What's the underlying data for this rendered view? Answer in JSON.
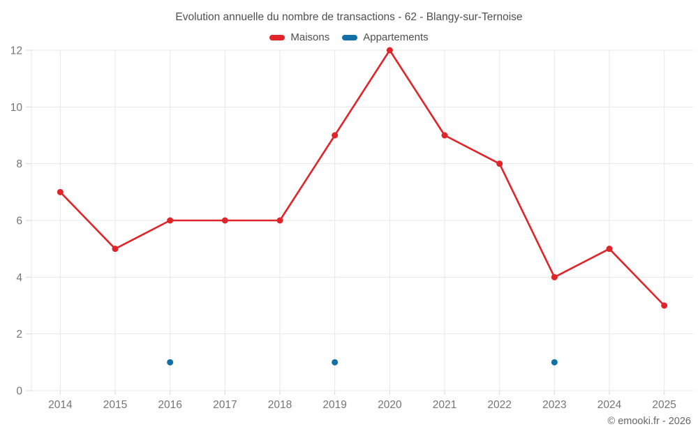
{
  "chart_data": {
    "type": "line",
    "title": "Evolution annuelle du nombre de transactions - 62 - Blangy-sur-Ternoise",
    "categories": [
      "2014",
      "2015",
      "2016",
      "2017",
      "2018",
      "2019",
      "2020",
      "2021",
      "2022",
      "2023",
      "2024",
      "2025"
    ],
    "series": [
      {
        "name": "Maisons",
        "color": "#e02429",
        "marker": "circle",
        "line": true,
        "values": [
          7,
          5,
          6,
          6,
          6,
          9,
          12,
          9,
          8,
          4,
          5,
          3
        ]
      },
      {
        "name": "Appartements",
        "color": "#1170a8",
        "marker": "circle",
        "line": true,
        "values": [
          null,
          null,
          1,
          null,
          null,
          1,
          null,
          null,
          null,
          1,
          null,
          null
        ]
      }
    ],
    "xlabel": "",
    "ylabel": "",
    "ylim": [
      0,
      12
    ],
    "yticks": [
      0,
      2,
      4,
      6,
      8,
      10,
      12
    ],
    "grid": true,
    "legend_position": "top"
  },
  "footer": {
    "credit": "© emooki.fr - 2026"
  },
  "theme": {
    "background": "#ffffff",
    "grid_color": "#e7e7e7",
    "axis_tick_color": "#d8d8d8",
    "title_color": "#4f4f4f",
    "tick_label_color": "#747474",
    "credit_color": "#666666"
  }
}
